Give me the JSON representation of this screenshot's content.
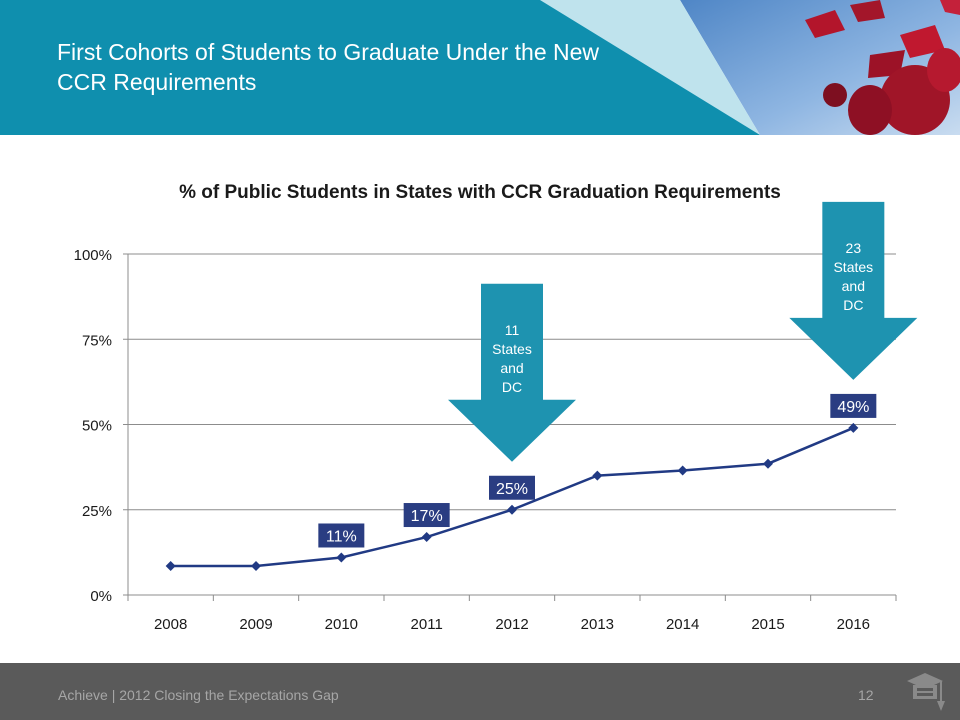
{
  "slide": {
    "title": "First Cohorts of Students to Graduate Under the New CCR Requirements"
  },
  "footer": {
    "text": "Achieve | 2012 Closing the Expectations Gap",
    "page": "12"
  },
  "colors": {
    "header": "#0f8fae",
    "line": "#213a84",
    "label_bg": "#2a3d82",
    "arrow": "#1e93b0",
    "footer": "#5a5a5a"
  },
  "callouts": [
    {
      "text_lines": [
        "11",
        "States",
        "and",
        "DC"
      ],
      "year": "2012"
    },
    {
      "text_lines": [
        "23",
        "States",
        "and",
        "DC"
      ],
      "year": "2016"
    }
  ],
  "chart_data": {
    "type": "line",
    "title": "% of Public Students in States with CCR Graduation Requirements",
    "categories": [
      "2008",
      "2009",
      "2010",
      "2011",
      "2012",
      "2013",
      "2014",
      "2015",
      "2016"
    ],
    "series": [
      {
        "values": [
          8.5,
          8.5,
          11,
          17,
          25,
          35,
          36.5,
          38.5,
          49
        ]
      }
    ],
    "data_labels": [
      {
        "category": "2010",
        "text": "11%"
      },
      {
        "category": "2011",
        "text": "17%"
      },
      {
        "category": "2012",
        "text": "25%"
      },
      {
        "category": "2016",
        "text": "49%"
      }
    ],
    "yticks": [
      "0%",
      "25%",
      "50%",
      "75%",
      "100%"
    ],
    "ylim": [
      0,
      100
    ],
    "grid": true,
    "legend": "none"
  }
}
